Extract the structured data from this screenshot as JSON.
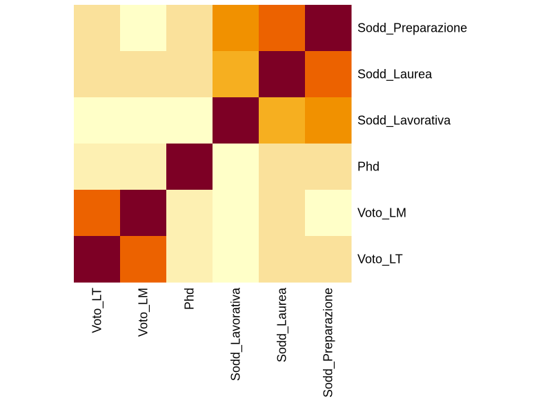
{
  "chart_data": {
    "type": "heatmap",
    "title": "",
    "xlabel": "",
    "ylabel": "",
    "columns": [
      "Voto_LT",
      "Voto_LM",
      "Phd",
      "Sodd_Lavorativa",
      "Sodd_Laurea",
      "Sodd_Preparazione"
    ],
    "rows": [
      "Sodd_Preparazione",
      "Sodd_Laurea",
      "Sodd_Lavorativa",
      "Phd",
      "Voto_LM",
      "Voto_LT"
    ],
    "values": [
      [
        0.2,
        0.0,
        0.2,
        0.65,
        0.8,
        1.0
      ],
      [
        0.2,
        0.2,
        0.2,
        0.5,
        1.0,
        0.8
      ],
      [
        0.0,
        0.0,
        0.0,
        1.0,
        0.5,
        0.65
      ],
      [
        0.1,
        0.1,
        1.0,
        0.0,
        0.2,
        0.2
      ],
      [
        0.8,
        1.0,
        0.1,
        0.0,
        0.2,
        0.0
      ],
      [
        1.0,
        0.8,
        0.1,
        0.0,
        0.2,
        0.2
      ]
    ],
    "color_scale": [
      "#FFFFC8",
      "#FAE19B",
      "#F8BC3F",
      "#F3A100",
      "#EC6200",
      "#7D0025"
    ],
    "legend": "none",
    "grid": false
  }
}
